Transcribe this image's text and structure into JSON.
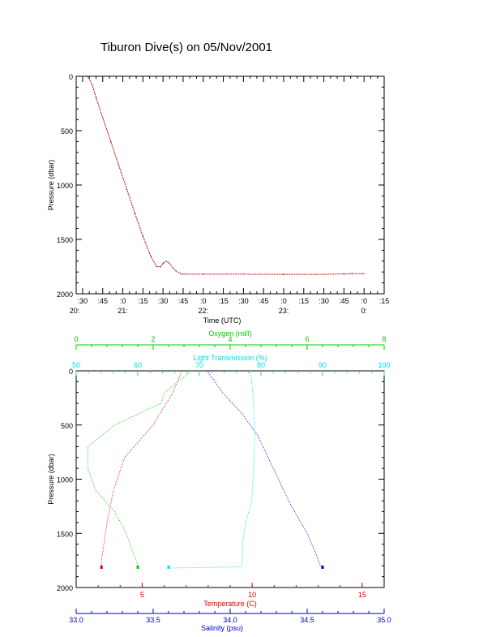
{
  "title": "Tiburon Dive(s) on 05/Nov/2001",
  "colors": {
    "axis": "#000000",
    "time_trace": "#cc0000",
    "temperature": "#dd0000",
    "oxygen": "#00cc00",
    "transmission": "#00dddd",
    "salinity": "#0000cc"
  },
  "chart_data": [
    {
      "type": "line",
      "xlabel": "Time (UTC)",
      "ylabel": "Pressure (dbar)",
      "ylim": [
        2000,
        0
      ],
      "xlim": [
        20.42,
        24.25
      ],
      "y_ticks": [
        "0",
        "500",
        "1000",
        "1500",
        "2000"
      ],
      "x_tick_minutes": [
        ":30",
        ":45",
        ":0",
        ":15",
        ":30",
        ":45",
        ":0",
        ":15",
        ":30",
        ":45",
        ":0",
        ":15",
        ":30",
        ":45",
        ":0",
        ":15"
      ],
      "x_tick_hours": [
        "20:",
        "21:",
        "22:",
        "23:",
        "0:"
      ],
      "series": [
        {
          "x": [
            20.55,
            20.58,
            20.62,
            20.67,
            20.75,
            20.85,
            20.95,
            21.05,
            21.15,
            21.25,
            21.35,
            21.42,
            21.47,
            21.5,
            21.54,
            21.58,
            21.62,
            21.66,
            21.72,
            21.75,
            21.8,
            22.0,
            22.5,
            23.0,
            23.5,
            23.75,
            23.85,
            24.0
          ],
          "y": [
            0,
            20,
            80,
            200,
            380,
            600,
            820,
            1040,
            1260,
            1470,
            1660,
            1750,
            1752,
            1720,
            1700,
            1720,
            1760,
            1790,
            1815,
            1820,
            1820,
            1820,
            1820,
            1822,
            1822,
            1818,
            1815,
            1815
          ]
        }
      ]
    },
    {
      "type": "line",
      "ylabel": "Pressure (dbar)",
      "ylim": [
        2000,
        0
      ],
      "y_ticks": [
        "0",
        "500",
        "1000",
        "1500",
        "2000"
      ],
      "axes": [
        {
          "label": "Temperature (C)",
          "position": "bottom",
          "range": [
            2.0,
            16.0
          ],
          "ticks": [
            "5",
            "10",
            "15"
          ],
          "series": {
            "name": "Temperature",
            "x": [
              6.8,
              6.4,
              5.5,
              4.2,
              3.7,
              3.4,
              3.3,
              3.2,
              3.15,
              3.15
            ],
            "y": [
              0,
              200,
              500,
              800,
              1100,
              1400,
              1550,
              1680,
              1750,
              1820
            ]
          }
        },
        {
          "label": "Salinity (psu)",
          "position": "bottom",
          "range": [
            33.0,
            35.0
          ],
          "ticks": [
            "33.0",
            "33.5",
            "34.0",
            "34.5",
            "35.0"
          ],
          "series": {
            "name": "Salinity",
            "x": [
              33.85,
              33.95,
              34.08,
              34.18,
              34.28,
              34.38,
              34.5,
              34.56,
              34.58,
              34.6
            ],
            "y": [
              0,
              200,
              400,
              600,
              900,
              1200,
              1500,
              1700,
              1780,
              1820
            ]
          }
        },
        {
          "label": "Oxygen (ml/l)",
          "position": "top",
          "range": [
            0,
            8
          ],
          "ticks": [
            "0",
            "2",
            "4",
            "6",
            "8"
          ],
          "series": {
            "name": "Oxygen",
            "x": [
              3.0,
              2.3,
              2.2,
              1.0,
              0.3,
              0.3,
              0.5,
              1.0,
              1.3,
              1.5,
              1.6,
              1.6
            ],
            "y": [
              0,
              200,
              300,
              500,
              700,
              900,
              1100,
              1300,
              1500,
              1700,
              1790,
              1820
            ]
          }
        },
        {
          "label": "Light Transmission (%)",
          "position": "top",
          "range": [
            50,
            100
          ],
          "ticks": [
            "50",
            "60",
            "70",
            "80",
            "90",
            "100"
          ],
          "series": {
            "name": "Light Transmission",
            "x": [
              78.3,
              78.5,
              78.8,
              79.0,
              78.8,
              78.5,
              77.5,
              77.0,
              77.0,
              76.8,
              65.0
            ],
            "y": [
              0,
              100,
              300,
              600,
              900,
              1200,
              1400,
              1600,
              1750,
              1810,
              1820
            ]
          }
        }
      ]
    }
  ]
}
